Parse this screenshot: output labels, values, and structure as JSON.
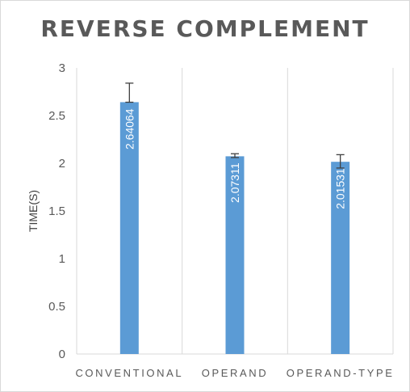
{
  "chart_data": {
    "type": "bar",
    "title": "REVERSE COMPLEMENT",
    "xlabel": "",
    "ylabel": "TIME(S)",
    "categories": [
      "CONVENTIONAL",
      "OPERAND",
      "OPERAND-TYPE"
    ],
    "values": [
      2.64064,
      2.07311,
      2.01531
    ],
    "data_labels": [
      "2.64064",
      "2.07311",
      "2.01531"
    ],
    "error_low": [
      2.64,
      2.06,
      1.95
    ],
    "error_high": [
      2.84,
      2.1,
      2.09
    ],
    "ylim": [
      0,
      3
    ],
    "yticks": [
      0,
      0.5,
      1,
      1.5,
      2,
      2.5,
      3
    ],
    "ytick_labels": [
      "0",
      "0.5",
      "1",
      "1.5",
      "2",
      "2.5",
      "3"
    ],
    "grid": "vertical category separators",
    "legend": "none",
    "bar_color": "#5b9bd5",
    "axis_color": "#d9d9d9",
    "error_bar_color": "#404040"
  }
}
